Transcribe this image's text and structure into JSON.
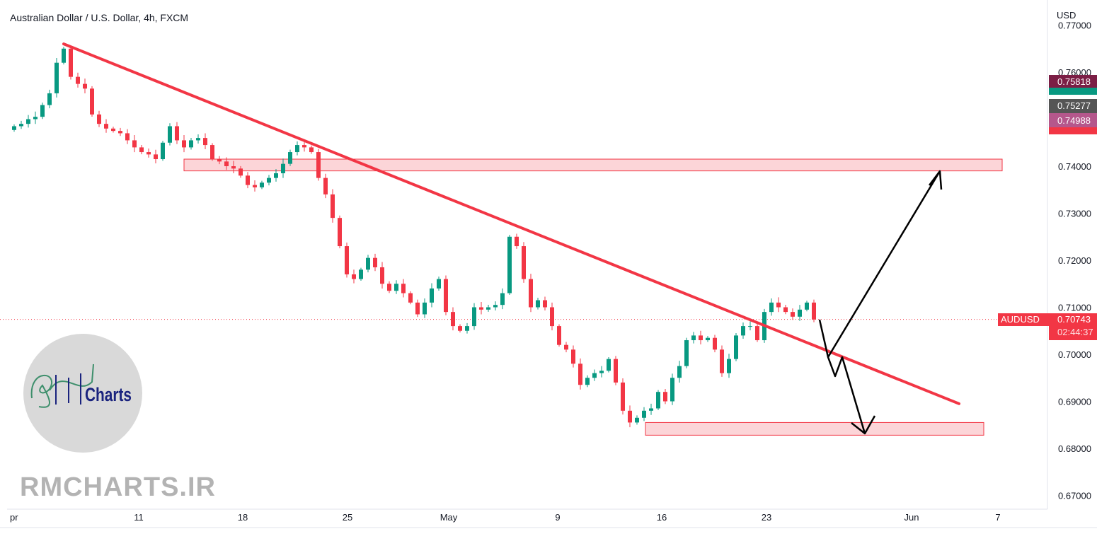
{
  "header": {
    "title": "Australian Dollar / U.S. Dollar, 4h, FXCM",
    "currency": "USD"
  },
  "watermark": "RMCHARTS.IR",
  "logo": {
    "text": "Charts",
    "script_letters": "RM"
  },
  "symbol_tag": {
    "symbol": "AUDUSD",
    "price": "0.70743",
    "countdown": "02:44:37",
    "color": "#f23645"
  },
  "price_tags": [
    {
      "value": "0.75818",
      "color": "#7b1e45"
    },
    {
      "value": "",
      "color": "#089981"
    },
    {
      "value": "0.75277",
      "color": "#555555"
    },
    {
      "value": "0.74988",
      "color": "#b5578c"
    },
    {
      "value": "",
      "color": "#f23645"
    }
  ],
  "colors": {
    "up": "#089981",
    "down": "#f23645",
    "trendline": "#f23645",
    "zone_fill": "#fcd5d8",
    "zone_border": "#f23645",
    "arrows": "#000000"
  },
  "chart_data": {
    "type": "candlestick",
    "title": "Australian Dollar / U.S. Dollar, 4h, FXCM",
    "ylabel": "USD",
    "ylim": [
      0.665,
      0.771
    ],
    "y_ticks": [
      "0.77000",
      "0.76000",
      "0.74000",
      "0.73000",
      "0.72000",
      "0.71000",
      "0.70000",
      "0.69000",
      "0.68000",
      "0.67000"
    ],
    "x_ticks": [
      "pr",
      "11",
      "18",
      "25",
      "May",
      "9",
      "16",
      "23",
      "Jun",
      "7"
    ],
    "closes": [
      0.7485,
      0.749,
      0.75,
      0.7505,
      0.753,
      0.7555,
      0.762,
      0.765,
      0.759,
      0.7575,
      0.7565,
      0.751,
      0.749,
      0.748,
      0.7475,
      0.747,
      0.7455,
      0.744,
      0.743,
      0.7425,
      0.7415,
      0.745,
      0.7485,
      0.7455,
      0.744,
      0.7455,
      0.746,
      0.7445,
      0.7415,
      0.741,
      0.74,
      0.7395,
      0.738,
      0.736,
      0.7355,
      0.7365,
      0.7375,
      0.7385,
      0.7405,
      0.743,
      0.7445,
      0.744,
      0.743,
      0.7375,
      0.734,
      0.729,
      0.723,
      0.717,
      0.716,
      0.718,
      0.7205,
      0.7185,
      0.715,
      0.7135,
      0.715,
      0.713,
      0.711,
      0.7085,
      0.711,
      0.714,
      0.716,
      0.709,
      0.706,
      0.705,
      0.706,
      0.71,
      0.7095,
      0.71,
      0.7105,
      0.713,
      0.725,
      0.723,
      0.716,
      0.71,
      0.7115,
      0.71,
      0.706,
      0.702,
      0.701,
      0.698,
      0.6935,
      0.695,
      0.696,
      0.6965,
      0.699,
      0.694,
      0.688,
      0.6855,
      0.6865,
      0.688,
      0.6885,
      0.692,
      0.69,
      0.695,
      0.6975,
      0.703,
      0.704,
      0.703,
      0.7035,
      0.701,
      0.696,
      0.699,
      0.704,
      0.706,
      0.706,
      0.703,
      0.709,
      0.711,
      0.71,
      0.709,
      0.708,
      0.7095,
      0.711,
      0.7074
    ],
    "current_price": 0.70743,
    "annotations": {
      "trendline": {
        "from": 0.766,
        "to": 0.6895
      },
      "resistance_zone": [
        0.739,
        0.7415
      ],
      "support_zone": [
        0.6828,
        0.6855
      ]
    }
  }
}
